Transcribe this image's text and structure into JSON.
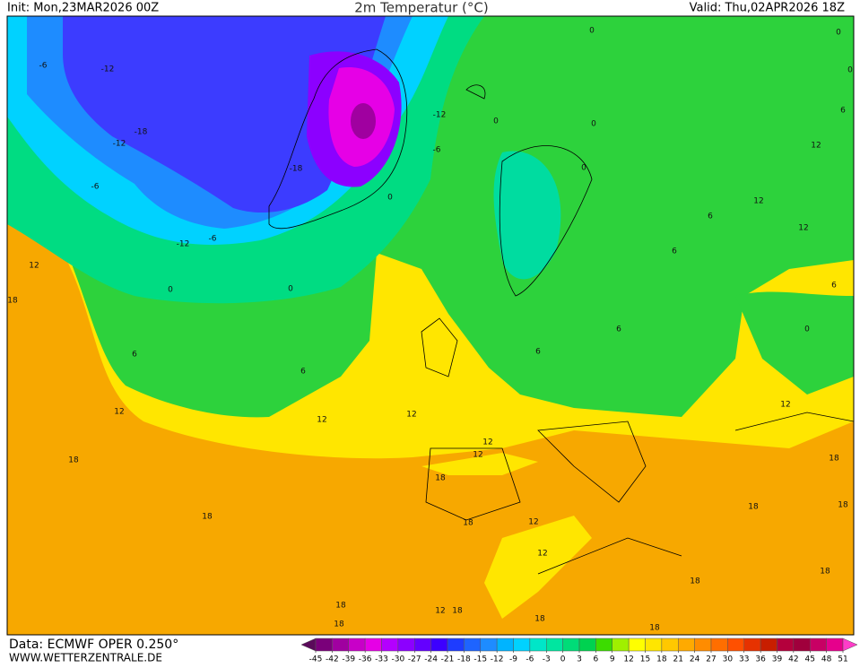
{
  "header": {
    "init": "Init: Mon,23MAR2026 00Z",
    "title": "2m Temperatur (°C)",
    "valid": "Valid: Thu,02APR2026 18Z"
  },
  "footer": {
    "source": "Data: ECMWF OPER 0.250°",
    "website": "WWW.WETTERZENTRALE.DE"
  },
  "legend": {
    "ticks": [
      -45,
      -42,
      -39,
      -36,
      -33,
      -30,
      -27,
      -24,
      -21,
      -18,
      -15,
      -12,
      -9,
      -6,
      -3,
      0,
      3,
      6,
      9,
      12,
      15,
      18,
      21,
      24,
      27,
      30,
      33,
      36,
      39,
      42,
      45,
      48,
      51
    ],
    "colors": [
      "#5a0a5a",
      "#7a007a",
      "#a000a0",
      "#c800c8",
      "#e600e6",
      "#b400ff",
      "#8c00ff",
      "#6400ff",
      "#3c00ff",
      "#1e3cff",
      "#1e64ff",
      "#1e8cff",
      "#00b4ff",
      "#00d2ff",
      "#00e6c8",
      "#00e6a0",
      "#00dc78",
      "#00d250",
      "#3cdc00",
      "#a0f000",
      "#ffff00",
      "#ffe600",
      "#ffc800",
      "#ffaa00",
      "#ff8c00",
      "#ff6e00",
      "#ff5000",
      "#e63200",
      "#c81e00",
      "#b4003c",
      "#a0003c",
      "#c80064",
      "#e6008c",
      "#ff3cc8"
    ]
  },
  "map": {
    "contour_labels": [
      -6,
      -12,
      -18,
      -12,
      -6,
      -12,
      -6,
      0,
      0,
      6,
      6,
      12,
      12,
      12,
      12,
      18,
      18,
      18,
      18,
      18,
      12,
      18,
      18,
      12,
      12,
      12,
      12,
      18,
      18,
      18,
      18,
      18,
      18,
      18,
      18,
      12,
      0,
      6,
      12,
      12,
      6,
      6,
      6,
      6,
      6,
      0,
      -6,
      -12,
      0,
      -18,
      0,
      0,
      0,
      12,
      0,
      0
    ]
  }
}
